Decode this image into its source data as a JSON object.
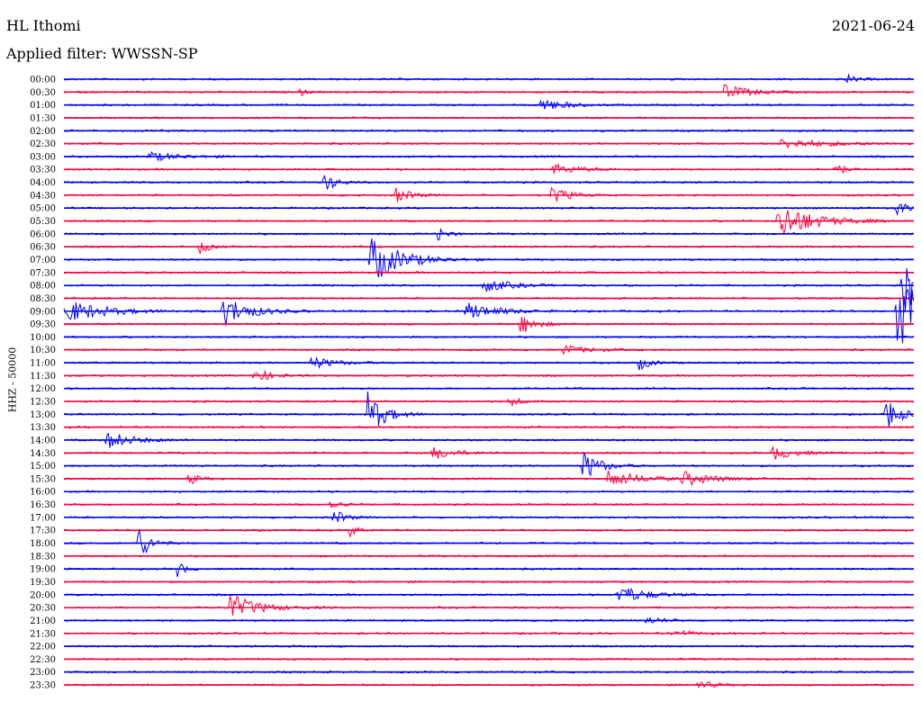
{
  "header": {
    "station": "HL Ithomi",
    "date": "2021-06-24",
    "filter_label": "Applied filter: WWSSN-SP"
  },
  "colors": {
    "blue": "#0000ff",
    "red": "#ff0040"
  },
  "chart_data": {
    "type": "line",
    "title": "HL Ithomi",
    "date": "2021-06-24",
    "filter": "WWSSN-SP",
    "ylabel": "HHZ - 50000",
    "x_range_minutes": [
      0,
      30
    ],
    "row_labels": [
      "00:00",
      "00:30",
      "01:00",
      "01:30",
      "02:00",
      "02:30",
      "03:00",
      "03:30",
      "04:00",
      "04:30",
      "05:00",
      "05:30",
      "06:00",
      "06:30",
      "07:00",
      "07:30",
      "08:00",
      "08:30",
      "09:00",
      "09:30",
      "10:00",
      "10:30",
      "11:00",
      "11:30",
      "12:00",
      "12:30",
      "13:00",
      "13:30",
      "14:00",
      "14:30",
      "15:00",
      "15:30",
      "16:00",
      "16:30",
      "17:00",
      "17:30",
      "18:00",
      "18:30",
      "19:00",
      "19:30",
      "20:00",
      "20:30",
      "21:00",
      "21:30",
      "22:00",
      "22:30",
      "23:00",
      "23:30"
    ],
    "row_colors": [
      "blue",
      "red"
    ],
    "events": [
      {
        "row": 0,
        "t": 27.6,
        "amp": 5,
        "dur": 0.6
      },
      {
        "row": 1,
        "t": 8.3,
        "amp": 4,
        "dur": 0.4
      },
      {
        "row": 1,
        "t": 23.3,
        "amp": 8,
        "dur": 1.4
      },
      {
        "row": 2,
        "t": 16.8,
        "amp": 8,
        "dur": 1.2
      },
      {
        "row": 5,
        "t": 25.3,
        "amp": 5,
        "dur": 3.0
      },
      {
        "row": 6,
        "t": 3.0,
        "amp": 5,
        "dur": 1.6
      },
      {
        "row": 7,
        "t": 17.2,
        "amp": 6,
        "dur": 1.5
      },
      {
        "row": 7,
        "t": 27.2,
        "amp": 10,
        "dur": 0.4
      },
      {
        "row": 8,
        "t": 9.2,
        "amp": 11,
        "dur": 0.6
      },
      {
        "row": 9,
        "t": 11.7,
        "amp": 9,
        "dur": 0.8
      },
      {
        "row": 9,
        "t": 17.2,
        "amp": 10,
        "dur": 0.9
      },
      {
        "row": 10,
        "t": 29.4,
        "amp": 10,
        "dur": 0.5
      },
      {
        "row": 11,
        "t": 25.2,
        "amp": 22,
        "dur": 1.8
      },
      {
        "row": 12,
        "t": 13.2,
        "amp": 8,
        "dur": 0.5
      },
      {
        "row": 13,
        "t": 4.8,
        "amp": 10,
        "dur": 0.4
      },
      {
        "row": 14,
        "t": 10.8,
        "amp": 28,
        "dur": 1.6
      },
      {
        "row": 16,
        "t": 14.8,
        "amp": 8,
        "dur": 1.4
      },
      {
        "row": 16,
        "t": 29.6,
        "amp": 40,
        "dur": 1.0
      },
      {
        "row": 18,
        "t": 0.0,
        "amp": 14,
        "dur": 2.0
      },
      {
        "row": 18,
        "t": 5.6,
        "amp": 18,
        "dur": 1.4
      },
      {
        "row": 18,
        "t": 14.2,
        "amp": 10,
        "dur": 1.6
      },
      {
        "row": 18,
        "t": 29.4,
        "amp": 45,
        "dur": 1.5
      },
      {
        "row": 19,
        "t": 16.1,
        "amp": 12,
        "dur": 0.8
      },
      {
        "row": 21,
        "t": 17.6,
        "amp": 6,
        "dur": 1.2
      },
      {
        "row": 22,
        "t": 8.7,
        "amp": 7,
        "dur": 1.2
      },
      {
        "row": 22,
        "t": 20.3,
        "amp": 8,
        "dur": 0.6
      },
      {
        "row": 23,
        "t": 6.7,
        "amp": 9,
        "dur": 0.8
      },
      {
        "row": 25,
        "t": 15.7,
        "amp": 6,
        "dur": 0.6
      },
      {
        "row": 26,
        "t": 10.7,
        "amp": 26,
        "dur": 0.9
      },
      {
        "row": 26,
        "t": 29.0,
        "amp": 20,
        "dur": 0.7
      },
      {
        "row": 28,
        "t": 1.5,
        "amp": 10,
        "dur": 1.4
      },
      {
        "row": 29,
        "t": 13.0,
        "amp": 7,
        "dur": 1.2
      },
      {
        "row": 29,
        "t": 25.0,
        "amp": 8,
        "dur": 1.1
      },
      {
        "row": 30,
        "t": 18.3,
        "amp": 18,
        "dur": 0.9
      },
      {
        "row": 31,
        "t": 4.4,
        "amp": 8,
        "dur": 0.5
      },
      {
        "row": 31,
        "t": 19.2,
        "amp": 9,
        "dur": 1.8
      },
      {
        "row": 31,
        "t": 21.8,
        "amp": 8,
        "dur": 1.6
      },
      {
        "row": 33,
        "t": 9.4,
        "amp": 7,
        "dur": 0.5
      },
      {
        "row": 34,
        "t": 9.5,
        "amp": 10,
        "dur": 0.6
      },
      {
        "row": 35,
        "t": 10.1,
        "amp": 7,
        "dur": 0.5
      },
      {
        "row": 36,
        "t": 2.6,
        "amp": 22,
        "dur": 0.6
      },
      {
        "row": 38,
        "t": 4.0,
        "amp": 9,
        "dur": 0.4
      },
      {
        "row": 40,
        "t": 19.5,
        "amp": 12,
        "dur": 1.4
      },
      {
        "row": 41,
        "t": 5.8,
        "amp": 16,
        "dur": 1.5
      },
      {
        "row": 42,
        "t": 20.5,
        "amp": 4,
        "dur": 1.0
      },
      {
        "row": 43,
        "t": 21.5,
        "amp": 4,
        "dur": 1.0
      },
      {
        "row": 47,
        "t": 22.4,
        "amp": 5,
        "dur": 0.8
      }
    ]
  }
}
